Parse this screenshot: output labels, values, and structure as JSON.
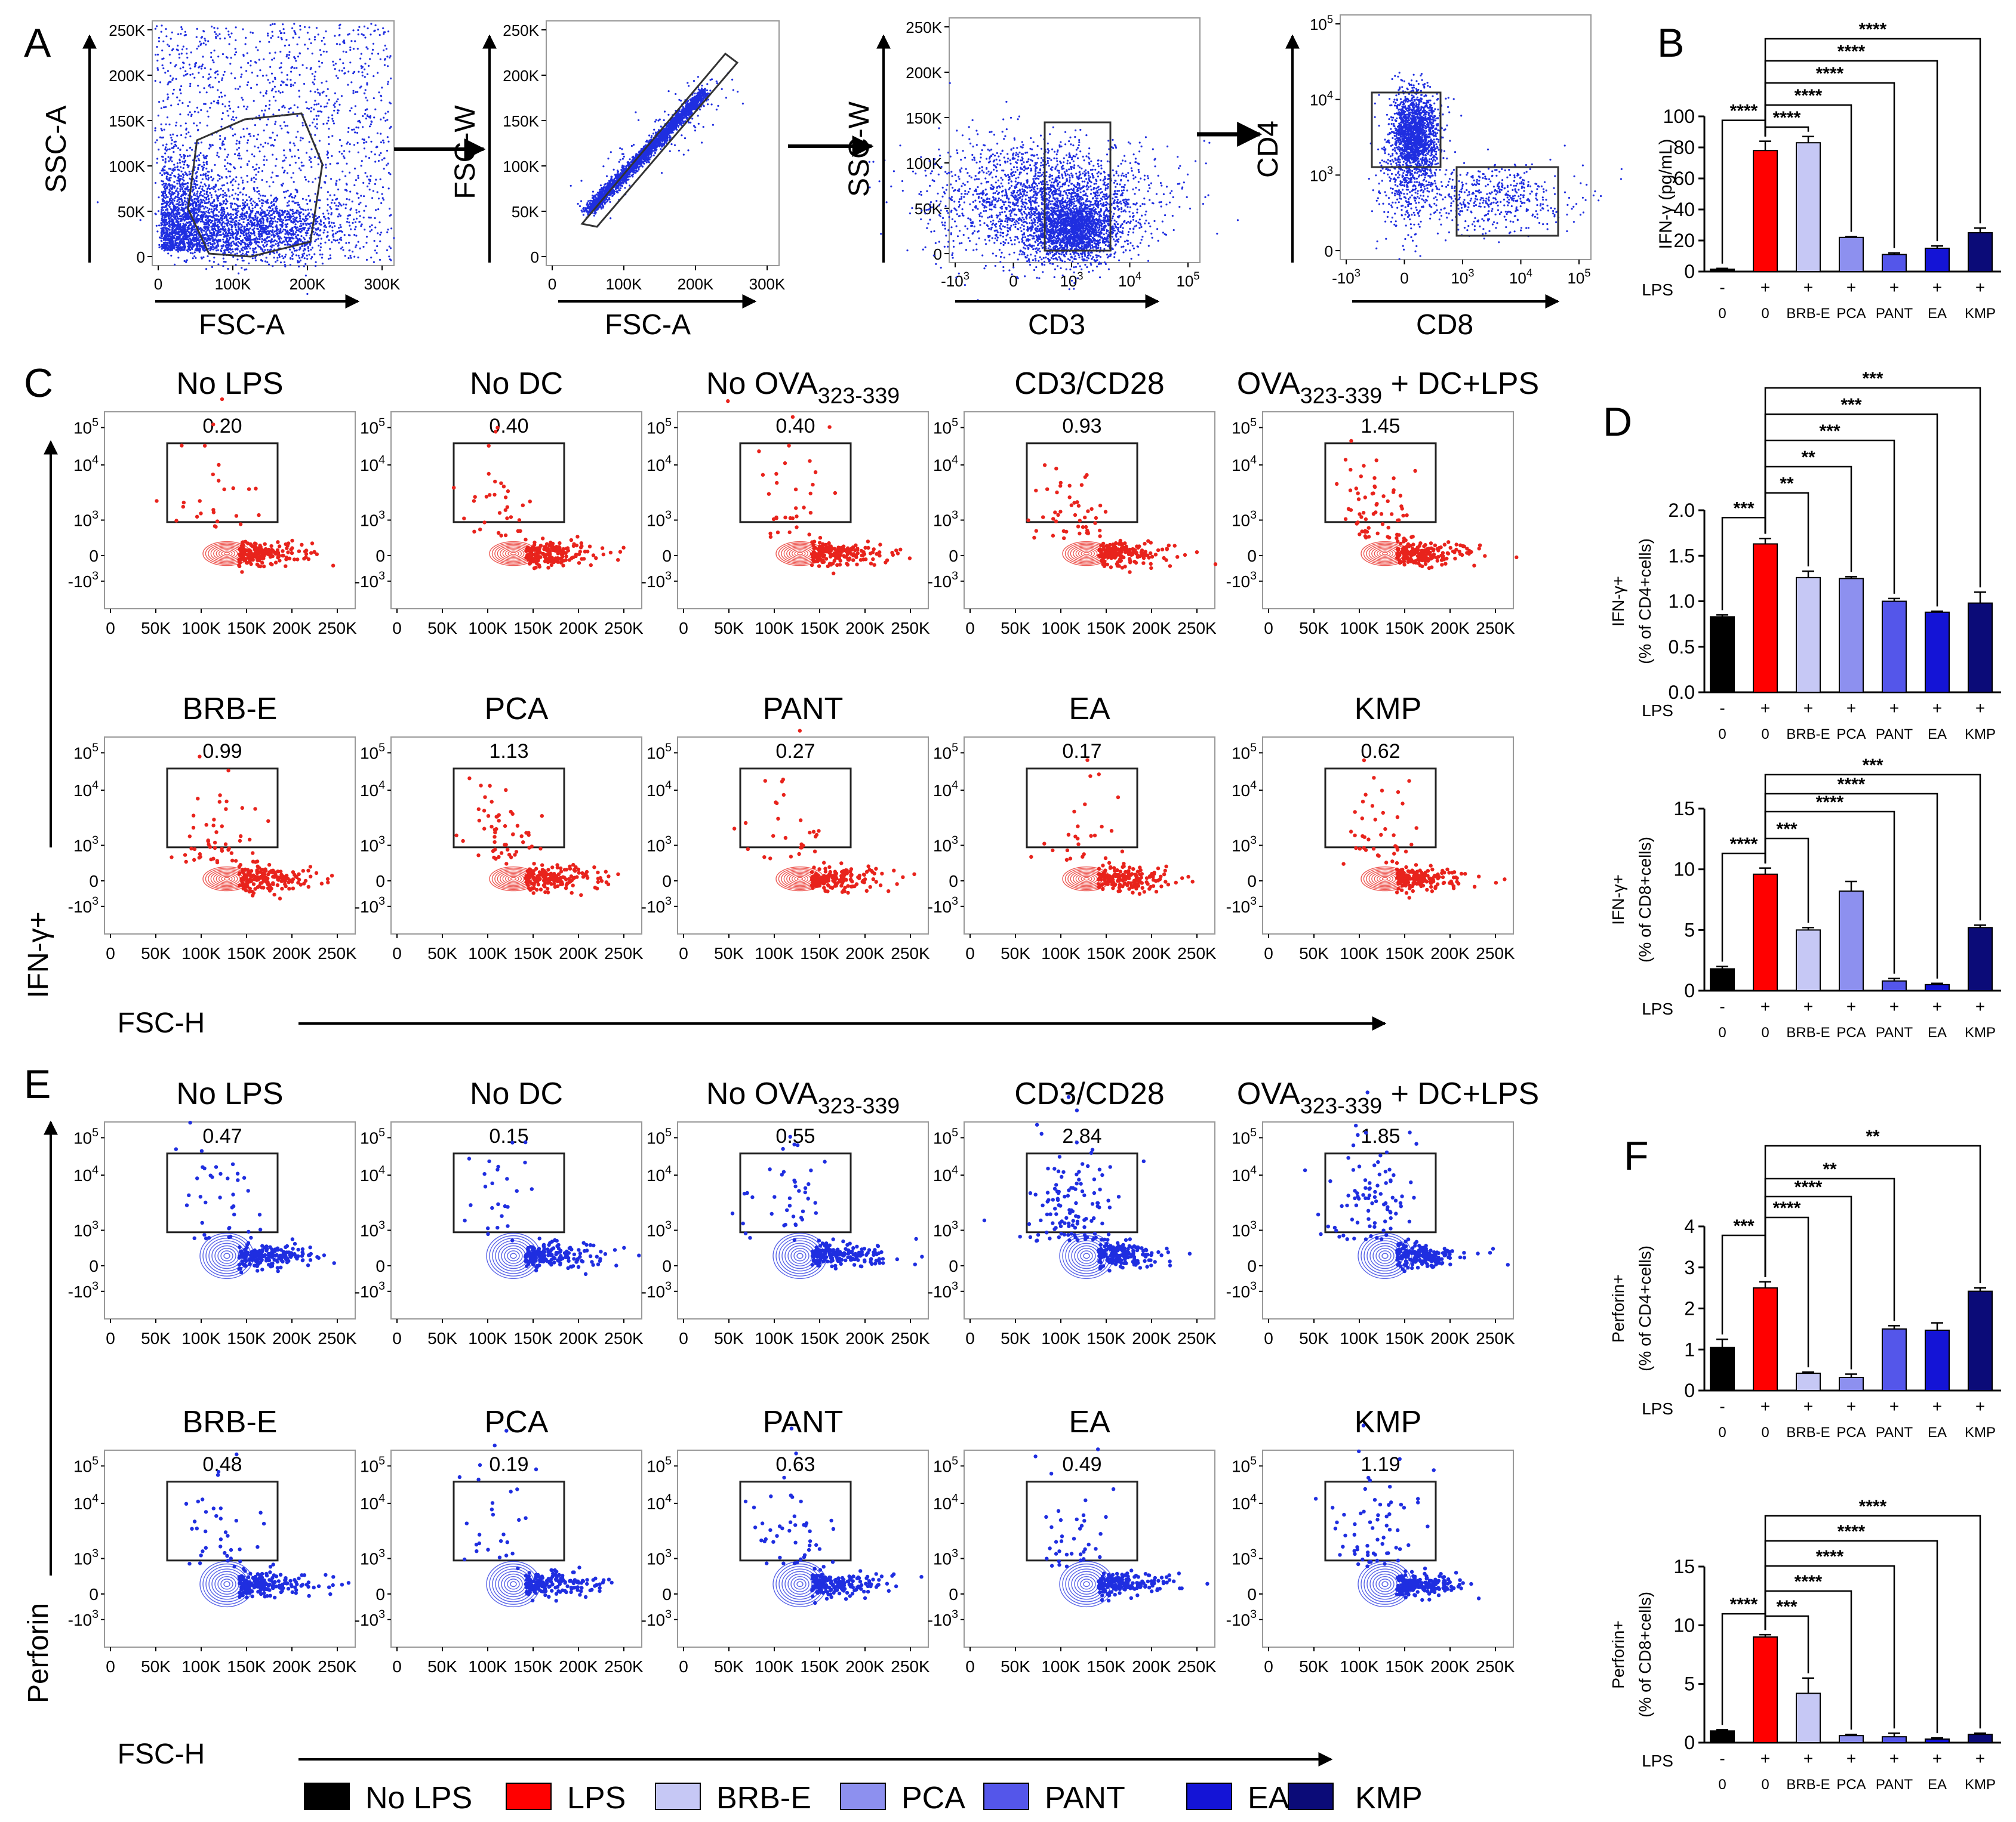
{
  "figure_labels": [
    "A",
    "B",
    "C",
    "D",
    "E",
    "F"
  ],
  "axis_text": {
    "ssc_a": "SSC-A",
    "fsc_a": "FSC-A",
    "fsc_w": "FSC-W",
    "ssc_w": "SSC-W",
    "cd3": "CD3",
    "cd4": "CD4",
    "cd8": "CD8",
    "ifng_plus": "IFN-γ+",
    "perforin": "Perforin",
    "fsc_h": "FSC-H"
  },
  "tick_labels": {
    "lin_250": [
      "0",
      "50K",
      "100K",
      "150K",
      "200K",
      "250K"
    ],
    "lin_300": [
      "0",
      "100K",
      "200K",
      "300K"
    ],
    "bottom_x": [
      "0",
      "50K",
      "100K",
      "150K",
      "200K",
      "250K"
    ],
    "log_y": [
      "10^5",
      "10^4",
      "10^3",
      "0",
      "-10^3"
    ],
    "log_x": [
      "-10^3",
      "0",
      "10^3",
      "10^4",
      "10^5"
    ]
  },
  "colors": {
    "blue_dots": "#1f2ee0",
    "red_dots": "#e8231c",
    "no_lps": "#000000",
    "lps": "#ff0000",
    "brb_e": "#c6c8f5",
    "pca": "#8d90ef",
    "pant": "#5456ea",
    "ea": "#1414d6",
    "kmp": "#0b0b78"
  },
  "panel_c": {
    "titles": [
      "No LPS",
      "No DC",
      "No OVA323-339",
      "CD3/CD28",
      "OVA323-339 + DC+LPS",
      "BRB-E",
      "PCA",
      "PANT",
      "EA",
      "KMP"
    ],
    "gate_values": [
      "0.20",
      "0.40",
      "0.40",
      "0.93",
      "1.45",
      "0.99",
      "1.13",
      "0.27",
      "0.17",
      "0.62"
    ]
  },
  "panel_e": {
    "titles": [
      "No LPS",
      "No DC",
      "No OVA323-339",
      "CD3/CD28",
      "OVA323-339 + DC+LPS",
      "BRB-E",
      "PCA",
      "PANT",
      "EA",
      "KMP"
    ],
    "gate_values": [
      "0.47",
      "0.15",
      "0.55",
      "2.84",
      "1.85",
      "0.48",
      "0.19",
      "0.63",
      "0.49",
      "1.19"
    ]
  },
  "legend": [
    "No LPS",
    "LPS",
    "BRB-E",
    "PCA",
    "PANT",
    "EA",
    "KMP"
  ],
  "chart_data": [
    {
      "id": "B",
      "type": "bar",
      "ylabel": "IFN-γ (pg/mL)",
      "ylim": [
        0,
        100
      ],
      "yticks": [
        0,
        20,
        40,
        60,
        80,
        100
      ],
      "lps_row": [
        "-",
        "+",
        "+",
        "+",
        "+",
        "+",
        "+"
      ],
      "categories": [
        "0",
        "0",
        "BRB-E",
        "PCA",
        "PANT",
        "EA",
        "KMP"
      ],
      "values": [
        1.5,
        78,
        83,
        22,
        11,
        15,
        25
      ],
      "errors": [
        0.5,
        6,
        4,
        0.5,
        1,
        1.5,
        3
      ],
      "sig": [
        [
          "****",
          0,
          1
        ],
        [
          "****",
          1,
          2
        ],
        [
          "****",
          1,
          3
        ],
        [
          "****",
          1,
          4
        ],
        [
          "****",
          1,
          5
        ],
        [
          "****",
          1,
          6
        ]
      ]
    },
    {
      "id": "D-CD4",
      "type": "bar",
      "ylabel": "IFN-γ+ (% of CD4+cells)",
      "ylim": [
        0,
        2.0
      ],
      "yticks": [
        "0.0",
        "0.5",
        "1.0",
        "1.5",
        "2.0"
      ],
      "lps_row": [
        "-",
        "+",
        "+",
        "+",
        "+",
        "+",
        "+"
      ],
      "categories": [
        "0",
        "0",
        "BRB-E",
        "PCA",
        "PANT",
        "EA",
        "KMP"
      ],
      "values": [
        0.83,
        1.63,
        1.26,
        1.25,
        1.0,
        0.88,
        0.98
      ],
      "errors": [
        0.02,
        0.06,
        0.07,
        0.02,
        0.03,
        0.01,
        0.12
      ],
      "sig": [
        [
          "***",
          0,
          1
        ],
        [
          "**",
          1,
          2
        ],
        [
          "**",
          1,
          3
        ],
        [
          "***",
          1,
          4
        ],
        [
          "***",
          1,
          5
        ],
        [
          "***",
          1,
          6
        ]
      ]
    },
    {
      "id": "D-CD8",
      "type": "bar",
      "ylabel": "IFN-γ+ (% of CD8+cells)",
      "ylim": [
        0,
        15
      ],
      "yticks": [
        "0",
        "5",
        "10",
        "15"
      ],
      "lps_row": [
        "-",
        "+",
        "+",
        "+",
        "+",
        "+",
        "+"
      ],
      "categories": [
        "0",
        "0",
        "BRB-E",
        "PCA",
        "PANT",
        "EA",
        "KMP"
      ],
      "values": [
        1.8,
        9.6,
        5.0,
        8.2,
        0.8,
        0.5,
        5.2
      ],
      "errors": [
        0.2,
        0.5,
        0.2,
        0.8,
        0.2,
        0.1,
        0.2
      ],
      "sig": [
        [
          "****",
          0,
          1
        ],
        [
          "***",
          1,
          2
        ],
        [
          "****",
          1,
          4
        ],
        [
          "****",
          1,
          5
        ],
        [
          "***",
          1,
          6
        ]
      ]
    },
    {
      "id": "F-CD4",
      "type": "bar",
      "ylabel": "Perforin+ (% of CD4+cells)",
      "ylim": [
        0,
        4
      ],
      "yticks": [
        "0",
        "1",
        "2",
        "3",
        "4"
      ],
      "lps_row": [
        "-",
        "+",
        "+",
        "+",
        "+",
        "+",
        "+"
      ],
      "categories": [
        "0",
        "0",
        "BRB-E",
        "PCA",
        "PANT",
        "EA",
        "KMP"
      ],
      "values": [
        1.05,
        2.5,
        0.42,
        0.32,
        1.5,
        1.47,
        2.42
      ],
      "errors": [
        0.2,
        0.15,
        0.03,
        0.08,
        0.08,
        0.18,
        0.08
      ],
      "sig": [
        [
          "***",
          0,
          1
        ],
        [
          "****",
          1,
          2
        ],
        [
          "****",
          1,
          3
        ],
        [
          "**",
          1,
          4
        ],
        [
          "**",
          1,
          6
        ]
      ]
    },
    {
      "id": "F-CD8",
      "type": "bar",
      "ylabel": "Perforin+ (% of CD8+cells)",
      "ylim": [
        0,
        15
      ],
      "yticks": [
        "0",
        "5",
        "10",
        "15"
      ],
      "lps_row": [
        "-",
        "+",
        "+",
        "+",
        "+",
        "+",
        "+"
      ],
      "categories": [
        "0",
        "0",
        "BRB-E",
        "PCA",
        "PANT",
        "EA",
        "KMP"
      ],
      "values": [
        1.0,
        9.0,
        4.2,
        0.6,
        0.5,
        0.3,
        0.7
      ],
      "errors": [
        0.1,
        0.2,
        1.3,
        0.1,
        0.3,
        0.1,
        0.1
      ],
      "sig": [
        [
          "****",
          0,
          1
        ],
        [
          "***",
          1,
          2
        ],
        [
          "****",
          1,
          3
        ],
        [
          "****",
          1,
          4
        ],
        [
          "****",
          1,
          5
        ],
        [
          "****",
          1,
          6
        ]
      ]
    }
  ]
}
